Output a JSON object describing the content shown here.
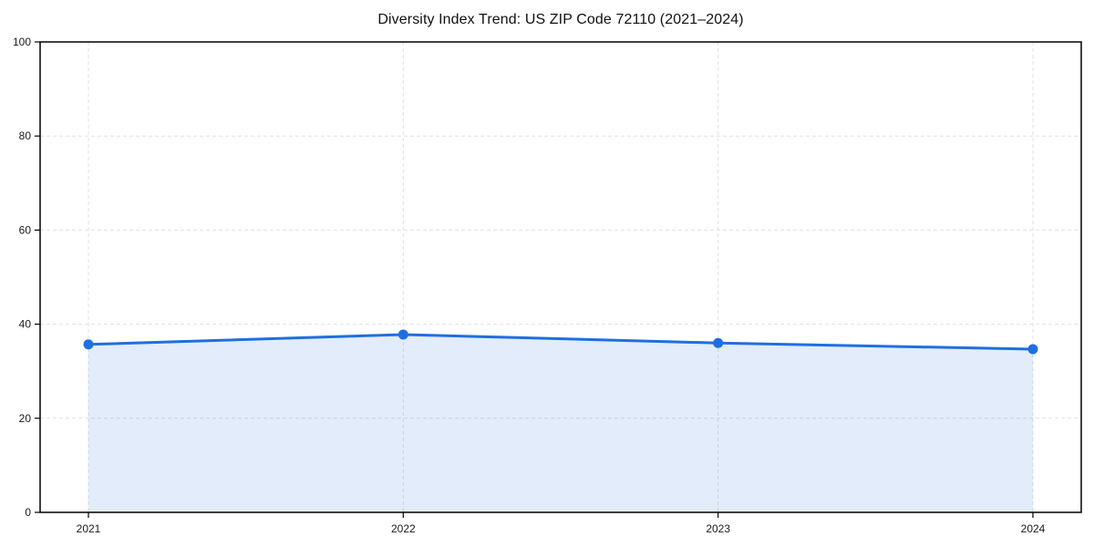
{
  "page": {
    "background_color": "#ffffff"
  },
  "chart_data": {
    "type": "area",
    "title": "Diversity Index Trend: US ZIP Code 72110 (2021–2024)",
    "categories": [
      "2021",
      "2022",
      "2023",
      "2024"
    ],
    "values": [
      35.7,
      37.8,
      36.0,
      34.7
    ],
    "xlabel": "",
    "ylabel": "",
    "ylim": [
      0,
      100
    ],
    "yticks": [
      0,
      20,
      40,
      60,
      80,
      100
    ],
    "grid": true,
    "grid_style": "dashed",
    "legend": "none",
    "line_color": "#1f6fe0",
    "fill_color": "rgba(31,111,224,0.13)",
    "marker": "circle",
    "axis_color": "#000000",
    "grid_color": "#e1e1e1",
    "tick_color": "#1a1a1a"
  }
}
